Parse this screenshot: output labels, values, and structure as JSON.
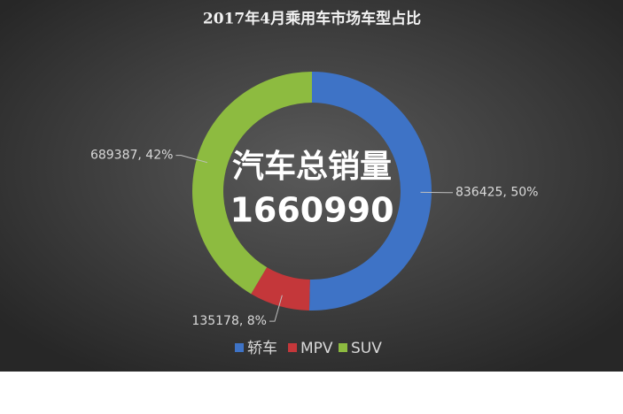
{
  "chart_data": {
    "type": "pie",
    "title": "2017年4月乘用车市场车型占比",
    "categories": [
      "轿车",
      "MPV",
      "SUV"
    ],
    "values": [
      836425,
      135178,
      689387
    ],
    "value_labels": [
      "836425, 50%",
      "135178, 8%",
      "689387, 42%"
    ],
    "colors": [
      "#3e73c6",
      "#c4373a",
      "#8dbb40"
    ],
    "center_label": "汽车总销量",
    "total": 1660990,
    "legend": "bottom"
  }
}
